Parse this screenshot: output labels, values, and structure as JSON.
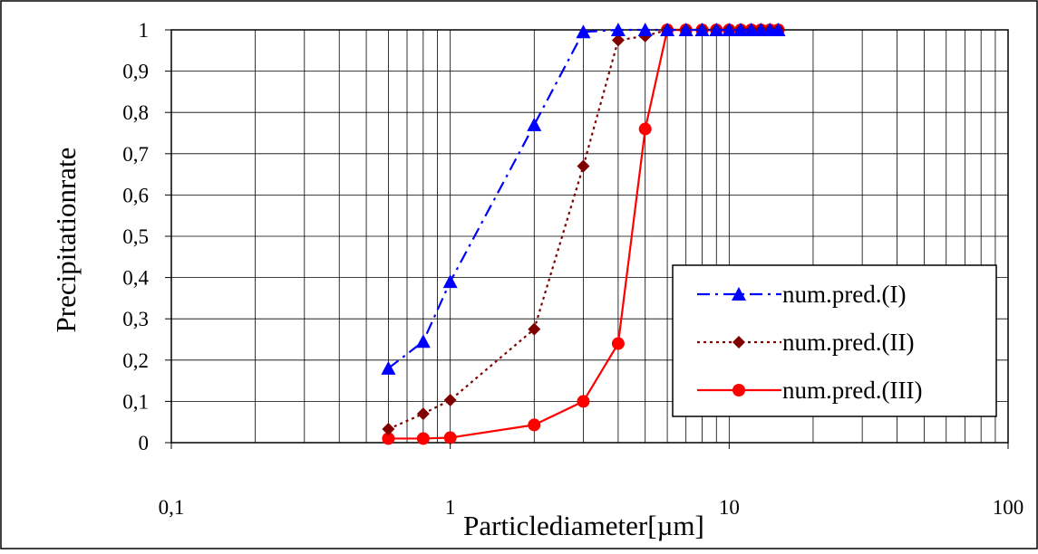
{
  "chart_data": {
    "type": "line",
    "xscale": "log",
    "xlim": [
      0.1,
      100
    ],
    "ylim": [
      0,
      1
    ],
    "xticks": [
      0.1,
      1,
      10,
      100
    ],
    "xtick_labels": [
      "0,1",
      "1",
      "10",
      "100"
    ],
    "yticks": [
      0,
      0.1,
      0.2,
      0.3,
      0.4,
      0.5,
      0.6,
      0.7,
      0.8,
      0.9,
      1
    ],
    "ytick_labels": [
      "0",
      "0,1",
      "0,2",
      "0,3",
      "0,4",
      "0,5",
      "0,6",
      "0,7",
      "0,8",
      "0,9",
      "1"
    ],
    "xlabel": "Particlediameter[µm]",
    "ylabel": "Precipitationrate",
    "grid": true,
    "legend_position": "right",
    "series": [
      {
        "name": "num.pred.(I)",
        "color": "#0000ff",
        "marker": "triangle",
        "line_style": "dash-dot",
        "x": [
          0.6,
          0.8,
          1,
          2,
          3,
          4,
          5,
          6,
          7,
          8,
          9,
          10,
          11,
          12,
          13,
          14,
          15
        ],
        "y": [
          0.18,
          0.245,
          0.39,
          0.77,
          0.995,
          1,
          1,
          1,
          1,
          1,
          1,
          1,
          1,
          1,
          1,
          1,
          1
        ]
      },
      {
        "name": "num.pred.(II)",
        "color": "#800000",
        "marker": "diamond",
        "line_style": "dotted",
        "x": [
          0.6,
          0.8,
          1,
          2,
          3,
          4,
          5,
          6,
          7,
          8,
          9,
          10,
          11,
          12,
          13,
          14,
          15
        ],
        "y": [
          0.033,
          0.07,
          0.103,
          0.275,
          0.67,
          0.975,
          0.985,
          1,
          1,
          1,
          1,
          1,
          1,
          1,
          1,
          1,
          1
        ]
      },
      {
        "name": "num.pred.(III)",
        "color": "#ff0000",
        "marker": "circle",
        "line_style": "solid",
        "x": [
          0.6,
          0.8,
          1,
          2,
          3,
          4,
          5,
          6,
          7,
          8,
          9,
          10,
          11,
          12,
          13,
          14,
          15
        ],
        "y": [
          0.01,
          0.01,
          0.012,
          0.043,
          0.1,
          0.24,
          0.76,
          1,
          1,
          1,
          1,
          1,
          1,
          1,
          1,
          1,
          1
        ]
      }
    ]
  }
}
